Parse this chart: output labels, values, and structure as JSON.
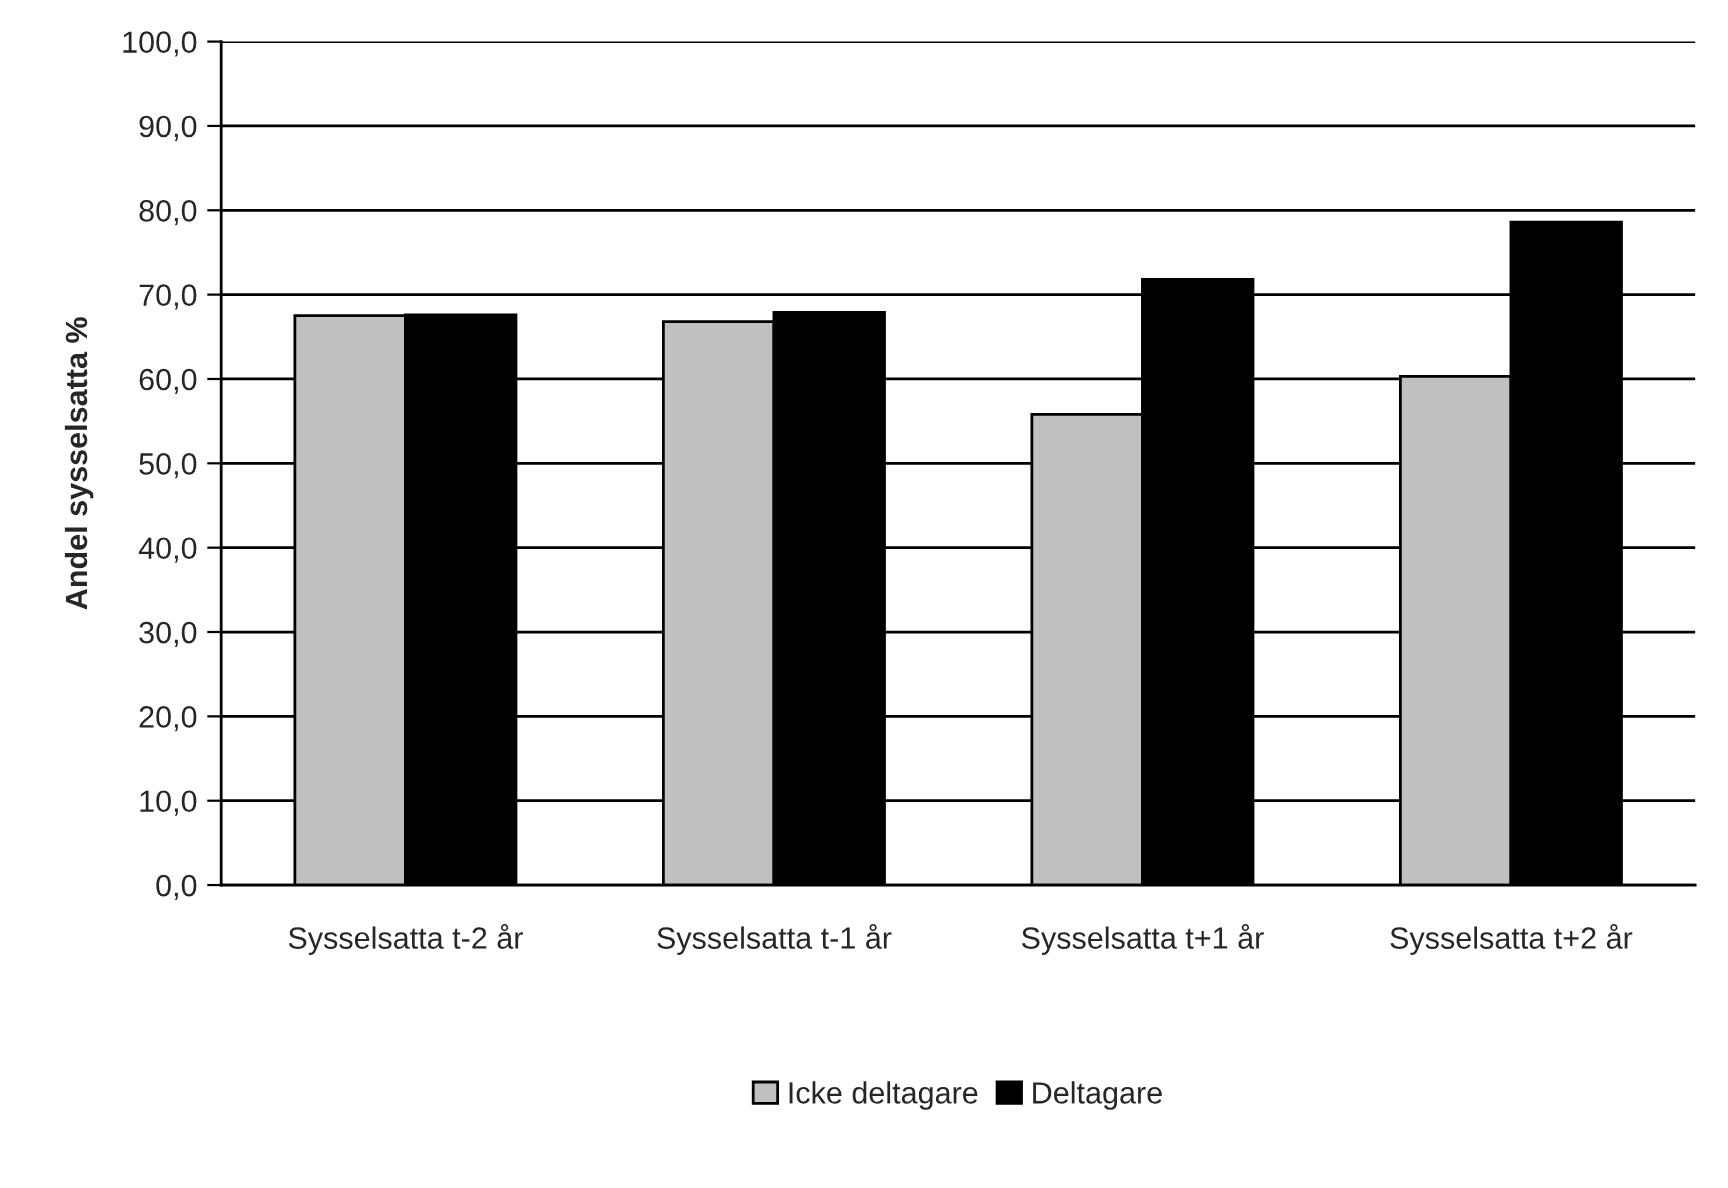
{
  "chart_data": {
    "type": "bar",
    "ylabel": "Andel sysselsatta %",
    "categories": [
      "Sysselsatta t-2 år",
      "Sysselsatta t-1 år",
      "Sysselsatta t+1 år",
      "Sysselsatta t+2 år"
    ],
    "series": [
      {
        "name": "Icke deltagare",
        "color": "#c0c0c0",
        "values": [
          67.5,
          66.8,
          55.8,
          60.3
        ]
      },
      {
        "name": "Deltagare",
        "color": "#000000",
        "values": [
          67.6,
          67.9,
          71.8,
          78.6
        ]
      }
    ],
    "ylim": [
      0,
      100
    ],
    "yticks": [
      {
        "value": 0,
        "label": "0,0"
      },
      {
        "value": 10,
        "label": "10,0"
      },
      {
        "value": 20,
        "label": "20,0"
      },
      {
        "value": 30,
        "label": "30,0"
      },
      {
        "value": 40,
        "label": "40,0"
      },
      {
        "value": 50,
        "label": "50,0"
      },
      {
        "value": 60,
        "label": "60,0"
      },
      {
        "value": 70,
        "label": "70,0"
      },
      {
        "value": 80,
        "label": "80,0"
      },
      {
        "value": 90,
        "label": "90,0"
      },
      {
        "value": 100,
        "label": "100,0"
      }
    ],
    "grid": "y",
    "legend": "bottom"
  }
}
